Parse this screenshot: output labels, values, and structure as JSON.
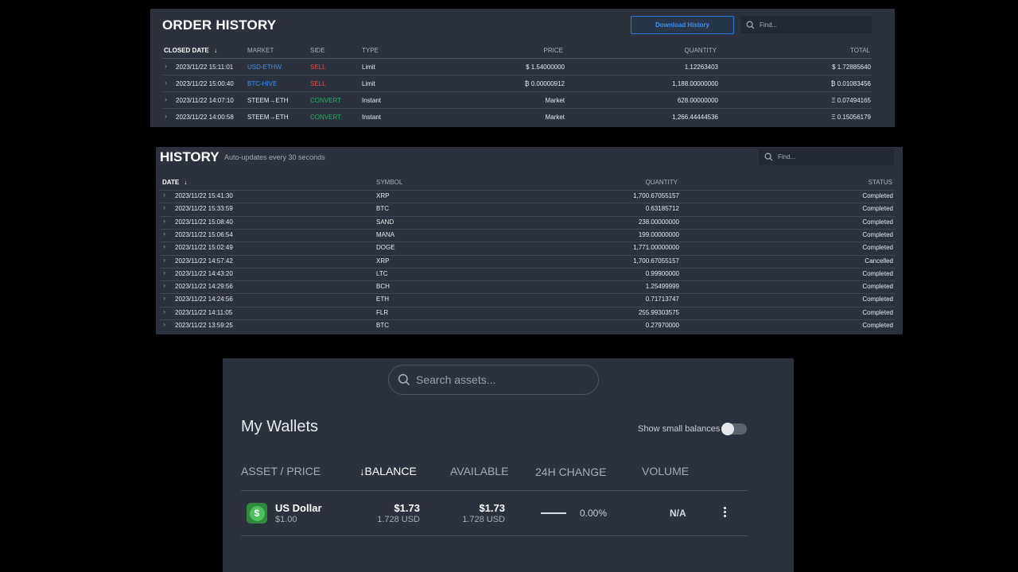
{
  "order_history": {
    "title": "ORDER HISTORY",
    "download_label": "Download History",
    "search_placeholder": "Find...",
    "columns": [
      "CLOSED DATE",
      "MARKET",
      "SIDE",
      "TYPE",
      "PRICE",
      "QUANTITY",
      "TOTAL"
    ],
    "rows": [
      {
        "date": "2023/11/22 15:11:01",
        "market": "USD-ETHW",
        "side": "SELL",
        "type": "Limit",
        "price": "$ 1.54000000",
        "quantity": "1.12263403",
        "total": "$ 1.72885640"
      },
      {
        "date": "2023/11/22 15:00:40",
        "market": "BTC-HIVE",
        "side": "SELL",
        "type": "Limit",
        "price": "₿ 0.00000912",
        "quantity": "1,188.00000000",
        "total": "₿ 0.01083456"
      },
      {
        "date": "2023/11/22 14:07:10",
        "market": "STEEM→ETH",
        "side": "CONVERT",
        "type": "Instant",
        "price": "Market",
        "quantity": "628.00000000",
        "total": "Ξ 0.07494165"
      },
      {
        "date": "2023/11/22 14:00:58",
        "market": "STEEM→ETH",
        "side": "CONVERT",
        "type": "Instant",
        "price": "Market",
        "quantity": "1,266.44444536",
        "total": "Ξ 0.15056179"
      }
    ]
  },
  "history": {
    "title": "HISTORY",
    "subtitle": "Auto-updates every 30 seconds",
    "search_placeholder": "Find...",
    "columns": [
      "DATE",
      "SYMBOL",
      "QUANTITY",
      "STATUS"
    ],
    "rows": [
      {
        "date": "2023/11/22 15:41:30",
        "symbol": "XRP",
        "quantity": "1,700.67055157",
        "status": "Completed"
      },
      {
        "date": "2023/11/22 15:33:59",
        "symbol": "BTC",
        "quantity": "0.63185712",
        "status": "Completed"
      },
      {
        "date": "2023/11/22 15:08:40",
        "symbol": "SAND",
        "quantity": "238.00000000",
        "status": "Completed"
      },
      {
        "date": "2023/11/22 15:06:54",
        "symbol": "MANA",
        "quantity": "199.00000000",
        "status": "Completed"
      },
      {
        "date": "2023/11/22 15:02:49",
        "symbol": "DOGE",
        "quantity": "1,771.00000000",
        "status": "Completed"
      },
      {
        "date": "2023/11/22 14:57:42",
        "symbol": "XRP",
        "quantity": "1,700.67055157",
        "status": "Cancelled"
      },
      {
        "date": "2023/11/22 14:43:20",
        "symbol": "LTC",
        "quantity": "0.99900000",
        "status": "Completed"
      },
      {
        "date": "2023/11/22 14:29:56",
        "symbol": "BCH",
        "quantity": "1.25499999",
        "status": "Completed"
      },
      {
        "date": "2023/11/22 14:24:56",
        "symbol": "ETH",
        "quantity": "0.71713747",
        "status": "Completed"
      },
      {
        "date": "2023/11/22 14:11:05",
        "symbol": "FLR",
        "quantity": "255.99303575",
        "status": "Completed"
      },
      {
        "date": "2023/11/22 13:59:25",
        "symbol": "BTC",
        "quantity": "0.27970000",
        "status": "Completed"
      }
    ]
  },
  "wallets": {
    "search_placeholder": "Search assets...",
    "title": "My Wallets",
    "small_balances_label": "Show small balances",
    "small_balances_on": false,
    "columns": {
      "asset": "ASSET / PRICE",
      "balance": "BALANCE",
      "available": "AVAILABLE",
      "change": "24H CHANGE",
      "volume": "VOLUME"
    },
    "row": {
      "name": "US Dollar",
      "price": "$1.00",
      "balance": "$1.73",
      "balance_sub": "1.728 USD",
      "available": "$1.73",
      "available_sub": "1.728 USD",
      "change": "0.00%",
      "volume": "N/A",
      "icon_symbol": "$"
    }
  },
  "colors": {
    "accent_blue": "#3f8fef",
    "sell_red": "#e5474c",
    "convert_green": "#2fae64",
    "panel_bg": "#2b323d"
  }
}
